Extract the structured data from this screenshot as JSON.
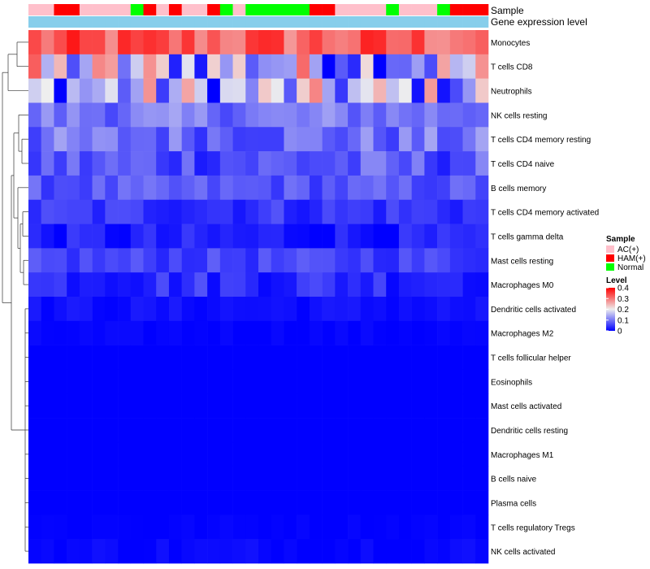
{
  "chart_data": {
    "type": "heatmap",
    "title": "",
    "annotation_tracks": [
      {
        "name": "Sample"
      },
      {
        "name": "Gene expression level"
      }
    ],
    "sample_groups": [
      "AC(+)",
      "AC(+)",
      "HAM(+)",
      "HAM(+)",
      "AC(+)",
      "AC(+)",
      "AC(+)",
      "AC(+)",
      "Normal",
      "HAM(+)",
      "AC(+)",
      "HAM(+)",
      "AC(+)",
      "AC(+)",
      "HAM(+)",
      "Normal",
      "AC(+)",
      "Normal",
      "Normal",
      "Normal",
      "Normal",
      "Normal",
      "HAM(+)",
      "HAM(+)",
      "AC(+)",
      "AC(+)",
      "AC(+)",
      "AC(+)",
      "Normal",
      "AC(+)",
      "AC(+)",
      "AC(+)",
      "Normal",
      "HAM(+)",
      "HAM(+)",
      "HAM(+)"
    ],
    "rows": [
      "Monocytes",
      "T cells CD8",
      "Neutrophils",
      "NK cells resting",
      "T cells CD4 memory resting",
      "T cells CD4 naive",
      "B cells memory",
      "T cells CD4 memory activated",
      "T cells gamma delta",
      "Mast cells resting",
      "Macrophages M0",
      "Dendritic cells activated",
      "Macrophages M2",
      "T cells follicular helper",
      "Eosinophils",
      "Mast cells activated",
      "Dendritic cells resting",
      "Macrophages M1",
      "B cells naive",
      "Plasma cells",
      "T cells regulatory  Tregs",
      "NK cells activated"
    ],
    "row_base": [
      0.32,
      0.16,
      0.14,
      0.1,
      0.09,
      0.07,
      0.07,
      0.045,
      0.02,
      0.055,
      0.04,
      0.012,
      0.003,
      0,
      0,
      0,
      0,
      0,
      0,
      0,
      0.002,
      0.005
    ],
    "row_amp": [
      0.06,
      0.17,
      0.15,
      0.04,
      0.05,
      0.05,
      0.03,
      0.03,
      0.03,
      0.025,
      0.035,
      0.012,
      0.006,
      0,
      0,
      0,
      0,
      0,
      0,
      0,
      0.004,
      0.012
    ],
    "color_scale": {
      "min": 0,
      "mid": 0.2,
      "max": 0.4,
      "low": "#0000FF",
      "middle": "#EEEEEE",
      "high": "#FF0000"
    },
    "legend": {
      "position": "right",
      "sample_title": "Sample",
      "sample_items": [
        {
          "label": "AC(+)",
          "color": "#FFC0CB"
        },
        {
          "label": "HAM(+)",
          "color": "#FF0000"
        },
        {
          "label": "Normal",
          "color": "#00FF00"
        }
      ],
      "level_title": "Level",
      "level_ticks": [
        "0.4",
        "0.3",
        "0.2",
        "0.1",
        "0"
      ],
      "level_tick_values": [
        0.4,
        0.3,
        0.2,
        0.1,
        0
      ]
    },
    "annotation_colors": {
      "expression": "#87CEEB"
    }
  }
}
